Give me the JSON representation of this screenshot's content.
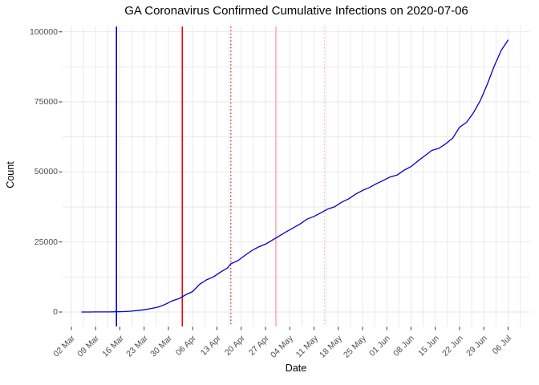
{
  "chart_data": {
    "type": "line",
    "title": "GA Coronavirus Confirmed Cumulative Infections on 2020-07-06",
    "xlabel": "Date",
    "ylabel": "Count",
    "x_axis": {
      "start_date": "2020-03-02",
      "end_date": "2020-07-06",
      "tick_interval_days": 7,
      "minor_grid_interval_days": 3.5
    },
    "x_tick_labels": [
      "02 Mar",
      "09 Mar",
      "16 Mar",
      "23 Mar",
      "30 Mar",
      "06 Apr",
      "13 Apr",
      "20 Apr",
      "27 Apr",
      "04 May",
      "11 May",
      "18 May",
      "25 May",
      "01 Jun",
      "08 Jun",
      "15 Jun",
      "22 Jun",
      "29 Jun",
      "06 Jul"
    ],
    "y_ticks": [
      {
        "value": 0,
        "label": "0"
      },
      {
        "value": 25000,
        "label": "25000"
      },
      {
        "value": 50000,
        "label": "50000"
      },
      {
        "value": 75000,
        "label": "75000"
      },
      {
        "value": 100000,
        "label": "100000"
      }
    ],
    "ylim": [
      0,
      100000
    ],
    "y_minor_grid_interval": 12500,
    "grid": true,
    "legend": false,
    "series": [
      {
        "name": "cumulative-confirmed-infections",
        "color": "#0000CD",
        "dates": [
          "2020-03-05",
          "2020-03-07",
          "2020-03-09",
          "2020-03-11",
          "2020-03-13",
          "2020-03-15",
          "2020-03-17",
          "2020-03-19",
          "2020-03-21",
          "2020-03-23",
          "2020-03-25",
          "2020-03-27",
          "2020-03-29",
          "2020-03-31",
          "2020-04-02",
          "2020-04-04",
          "2020-04-06",
          "2020-04-08",
          "2020-04-10",
          "2020-04-12",
          "2020-04-14",
          "2020-04-16",
          "2020-04-17",
          "2020-04-19",
          "2020-04-21",
          "2020-04-23",
          "2020-04-25",
          "2020-04-27",
          "2020-04-29",
          "2020-05-01",
          "2020-05-03",
          "2020-05-05",
          "2020-05-07",
          "2020-05-09",
          "2020-05-11",
          "2020-05-13",
          "2020-05-15",
          "2020-05-17",
          "2020-05-19",
          "2020-05-21",
          "2020-05-23",
          "2020-05-25",
          "2020-05-27",
          "2020-05-29",
          "2020-05-31",
          "2020-06-02",
          "2020-06-04",
          "2020-06-06",
          "2020-06-08",
          "2020-06-10",
          "2020-06-12",
          "2020-06-14",
          "2020-06-16",
          "2020-06-18",
          "2020-06-20",
          "2020-06-22",
          "2020-06-24",
          "2020-06-26",
          "2020-06-28",
          "2020-06-30",
          "2020-07-02",
          "2020-07-04",
          "2020-07-06"
        ],
        "values": [
          2,
          11,
          17,
          23,
          42,
          99,
          146,
          287,
          507,
          800,
          1247,
          1745,
          2683,
          3929,
          4748,
          6160,
          7314,
          9901,
          11485,
          12550,
          14223,
          15669,
          17194,
          18301,
          20166,
          21883,
          23216,
          24225,
          25679,
          27134,
          28671,
          29998,
          31439,
          33160,
          34117,
          35427,
          36772,
          37579,
          39194,
          40405,
          42044,
          43400,
          44421,
          45781,
          46980,
          48207,
          48894,
          50621,
          51898,
          53920,
          55783,
          57681,
          58414,
          60030,
          62009,
          65928,
          67678,
          71095,
          75536,
          81291,
          87709,
          93319,
          97064
        ]
      }
    ],
    "vlines": [
      {
        "date": "2020-03-15",
        "color": "#0000EE",
        "style": "solid"
      },
      {
        "date": "2020-04-03",
        "color": "#EE0000",
        "style": "solid"
      },
      {
        "date": "2020-04-17",
        "color": "#EE0000",
        "style": "dotted"
      },
      {
        "date": "2020-04-30",
        "color": "#FFAEB9",
        "style": "solid"
      },
      {
        "date": "2020-05-14",
        "color": "#FFAEB9",
        "style": "dotted"
      }
    ],
    "colors": {
      "grid": "#E7E7E7",
      "axis_text": "#4D4D4D",
      "tick_marks": "#333333",
      "background": "#FFFFFF",
      "title": "#000000"
    }
  }
}
